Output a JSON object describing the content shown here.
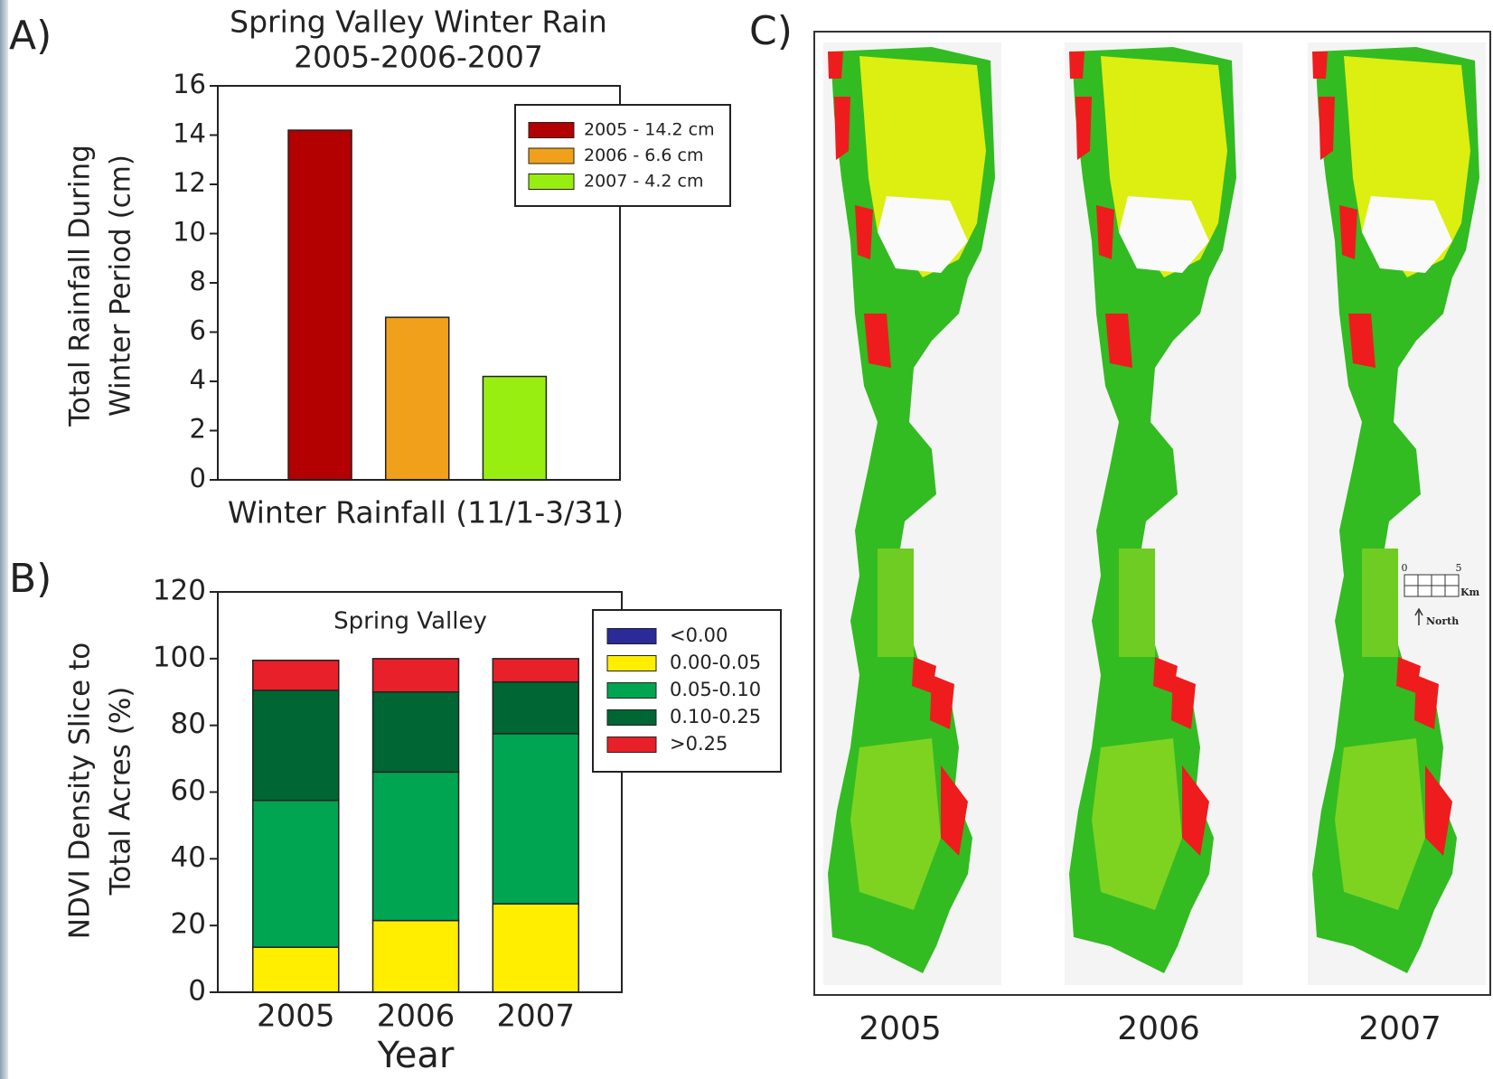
{
  "panel_labels": [
    "A)",
    "B)",
    "C)"
  ],
  "chart_data": [
    {
      "type": "bar",
      "title": "Spring Valley Winter Rain",
      "subtitle": "2005-2006-2007",
      "xlabel": "Winter Rainfall (11/1-3/31)",
      "ylabel": [
        "Total Rainfall During",
        "Winter Period (cm)"
      ],
      "categories": [
        null,
        null,
        null
      ],
      "series": [
        {
          "name": "2005 - 14.2 cm",
          "color": "#b30000",
          "values": [
            14.2,
            null,
            null
          ]
        },
        {
          "name": "2006 - 6.6 cm",
          "color": "#f0a01a",
          "values": [
            null,
            6.6,
            null
          ]
        },
        {
          "name": "2007 - 4.2 cm",
          "color": "#99ee11",
          "values": [
            null,
            null,
            4.2
          ]
        }
      ],
      "ylim": [
        0,
        16
      ],
      "yticks": [
        0,
        2,
        4,
        6,
        8,
        10,
        12,
        14,
        16
      ],
      "grid": false,
      "legend": "upper right"
    },
    {
      "type": "stacked_bar",
      "annotation": "Spring Valley",
      "xlabel": "Year",
      "ylabel": [
        "NDVI Density Slice to",
        "Total Acres (%)"
      ],
      "categories": [
        "2005",
        "2006",
        "2007"
      ],
      "series": [
        {
          "name": "<0.00",
          "color": "#2a2a99",
          "values": [
            0,
            0,
            0
          ]
        },
        {
          "name": "0.00-0.05",
          "color": "#ffee00",
          "values": [
            13.5,
            21.5,
            26.5
          ]
        },
        {
          "name": "0.05-0.10",
          "color": "#00a551",
          "values": [
            44,
            44.5,
            51
          ]
        },
        {
          "name": "0.10-0.25",
          "color": "#006633",
          "values": [
            33,
            24,
            15.5
          ]
        },
        {
          "name": ">0.25",
          "color": "#e8202a",
          "values": [
            9,
            10,
            7
          ]
        }
      ],
      "ylim": [
        0,
        120
      ],
      "yticks": [
        0,
        20,
        40,
        60,
        80,
        100,
        120
      ],
      "grid": false,
      "legend": "outside right"
    }
  ],
  "maps": {
    "years": [
      "2005",
      "2006",
      "2007"
    ],
    "scale_bar": {
      "start": "0",
      "end": "5",
      "unit": "Km",
      "north": "North"
    }
  }
}
